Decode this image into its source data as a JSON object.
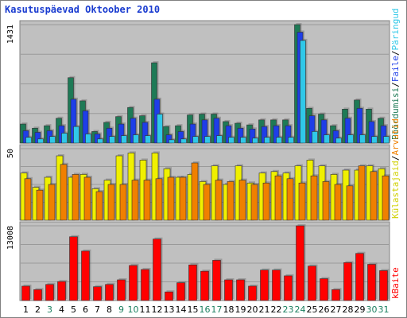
{
  "chart_data": {
    "type": "bar",
    "title": "Kasutuspäevad Oktoober 2010",
    "categories": [
      "1",
      "2",
      "3",
      "4",
      "5",
      "6",
      "7",
      "8",
      "9",
      "10",
      "11",
      "12",
      "13",
      "14",
      "15",
      "16",
      "17",
      "18",
      "19",
      "20",
      "21",
      "22",
      "23",
      "24",
      "25",
      "26",
      "27",
      "28",
      "29",
      "30",
      "31"
    ],
    "weekend_days": [
      "3",
      "9",
      "10",
      "16",
      "17",
      "23",
      "24",
      "30",
      "31"
    ],
    "colors": {
      "title": "#1a3cd0",
      "weekday_label": "#000000",
      "weekend_label": "#1a8060",
      "plot_bg": "#c0c0c0",
      "frame": "#808080",
      "grid": "#9a9a9a",
      "top_series": [
        "#1e7a56",
        "#1e3ee8",
        "#30c8e8"
      ],
      "mid_series": [
        "#f0f000",
        "#f08000"
      ],
      "bottom_series": [
        "#ff0000"
      ],
      "legend_separator": "#000000"
    },
    "panels": [
      {
        "axis_max_label": "1431",
        "ylim": [
          0,
          1431
        ],
        "series": [
          {
            "name": "Päringud",
            "values": [
              230,
              180,
              210,
              300,
              790,
              510,
              140,
              250,
              320,
              430,
              330,
              970,
              200,
              210,
              340,
              350,
              350,
              260,
              240,
              220,
              280,
              280,
              280,
              1431,
              420,
              350,
              210,
              410,
              520,
              410,
              300
            ]
          },
          {
            "name": "Faile",
            "values": [
              150,
              130,
              150,
              210,
              530,
              390,
              110,
              180,
              230,
              300,
              250,
              530,
              100,
              140,
              230,
              280,
              300,
              210,
              180,
              170,
              200,
              210,
              210,
              1340,
              330,
              280,
              150,
              300,
              420,
              260,
              210
            ]
          },
          {
            "name": "Pöördumisi",
            "values": [
              70,
              50,
              80,
              120,
              200,
              110,
              50,
              80,
              90,
              100,
              90,
              350,
              40,
              50,
              80,
              80,
              90,
              70,
              70,
              60,
              70,
              70,
              70,
              1240,
              140,
              100,
              60,
              100,
              100,
              80,
              80
            ]
          }
        ]
      },
      {
        "axis_max_label": "50",
        "ylim": [
          0,
          50
        ],
        "series": [
          {
            "name": "Külastajaid",
            "values": [
              33,
              23,
              30,
              45,
              30,
              32,
              22,
              28,
              45,
              47,
              42,
              47,
              36,
              30,
              32,
              27,
              38,
              25,
              38,
              26,
              33,
              34,
              33,
              38,
              42,
              38,
              32,
              35,
              35,
              38,
              36
            ]
          },
          {
            "name": "Arvutid",
            "values": [
              29,
              21,
              25,
              39,
              32,
              30,
              20,
              25,
              25,
              28,
              28,
              29,
              30,
              30,
              40,
              25,
              28,
              27,
              28,
              25,
              26,
              31,
              29,
              26,
              31,
              27,
              25,
              24,
              38,
              34,
              31
            ]
          }
        ]
      },
      {
        "axis_max_label": "13008",
        "ylim": [
          0,
          13008
        ],
        "series": [
          {
            "name": "kBaite",
            "values": [
              2500,
              1900,
              2800,
              3300,
              11100,
              8600,
              2400,
              2800,
              3600,
              6100,
              5400,
              10700,
              1500,
              3100,
              6200,
              5100,
              7000,
              3600,
              3600,
              2500,
              5300,
              5300,
              4300,
              13008,
              6000,
              3800,
              1900,
              6600,
              8200,
              6300,
              5200
            ]
          }
        ]
      }
    ],
    "legend": [
      {
        "label": "Pöördumisi",
        "color": "#1e7a56"
      },
      {
        "label": "Faile",
        "color": "#1e3ee8"
      },
      {
        "label": "Päringud",
        "color": "#30c8e8"
      },
      {
        "label": "Külastajaid",
        "color": "#d0d000"
      },
      {
        "label": "Arvutid",
        "color": "#f08000"
      },
      {
        "label": "kBaite",
        "color": "#ff0000"
      }
    ]
  }
}
